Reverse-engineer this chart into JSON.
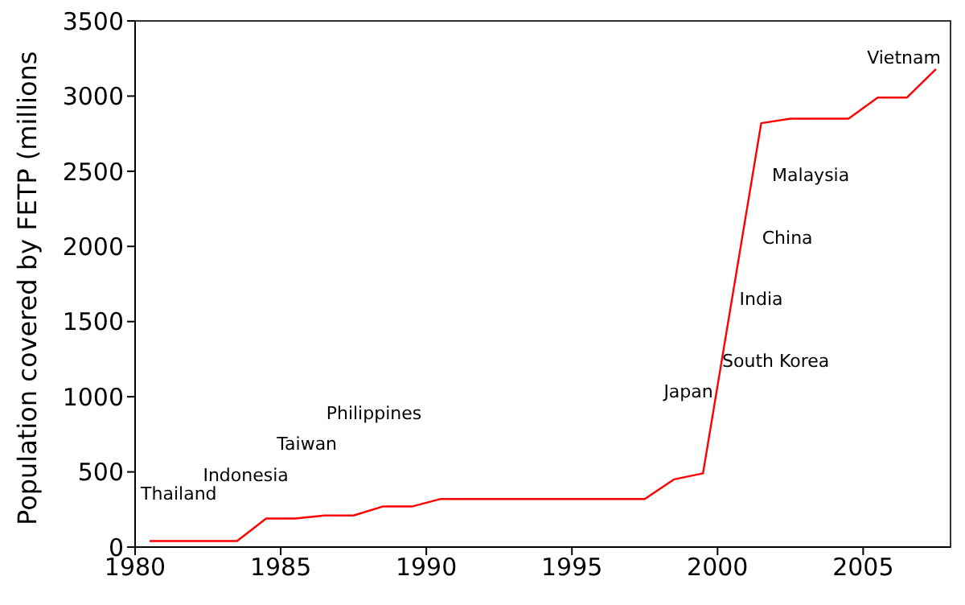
{
  "chart_data": {
    "type": "line",
    "ylabel": "Population covered by FETP (millions",
    "x": [
      1980.5,
      1983.5,
      1984.5,
      1985.5,
      1986.5,
      1987.5,
      1988.5,
      1989.5,
      1990.5,
      1997.5,
      1998.5,
      1999.5,
      2001.5,
      2002.5,
      2004.5,
      2005.5,
      2006.5,
      2007.5
    ],
    "series": [
      {
        "color": "#ff0000",
        "values": [
          40,
          40,
          190,
          190,
          210,
          210,
          270,
          270,
          320,
          320,
          450,
          490,
          2820,
          2850,
          2850,
          2990,
          2990,
          3180
        ]
      }
    ],
    "xlim": [
      1980,
      2008
    ],
    "xticks": [
      1980,
      1985,
      1990,
      1995,
      2000,
      2005
    ],
    "ylim": [
      0,
      3500
    ],
    "yticks": [
      0,
      500,
      1000,
      1500,
      2000,
      2500,
      3000,
      3500
    ],
    "grid": false,
    "legend": false,
    "marker": "none",
    "line_style": "solid",
    "annotations": [
      "Thailand",
      "Indonesia",
      "Taiwan",
      "Philippines",
      "Japan",
      "South Korea",
      "India",
      "China",
      "Malaysia",
      "Vietnam"
    ]
  }
}
